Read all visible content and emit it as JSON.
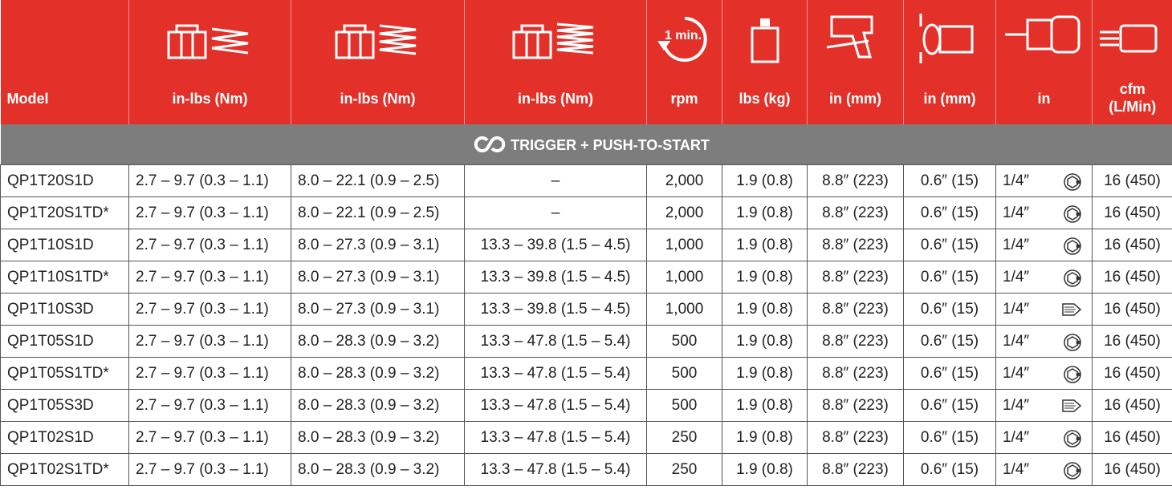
{
  "header": {
    "columns": [
      "Model",
      "in-lbs (Nm)",
      "in-lbs (Nm)",
      "in-lbs (Nm)",
      "rpm",
      "lbs (kg)",
      "in (mm)",
      "in (mm)",
      "in",
      "cfm (L/Min)"
    ],
    "rpm_icon_text": "1 min."
  },
  "section": "TRIGGER + PUSH-TO-START",
  "table": {
    "rows": [
      [
        "QP1T20S1D",
        "2.7 – 9.7 (0.3 – 1.1)",
        "8.0 – 22.1 (0.9 – 2.5)",
        "–",
        "2,000",
        "1.9 (0.8)",
        "8.8″ (223)",
        "0.6″ (15)",
        "1/4″",
        "16 (450)"
      ],
      [
        "QP1T20S1TD*",
        "2.7 – 9.7 (0.3 – 1.1)",
        "8.0 – 22.1 (0.9 – 2.5)",
        "–",
        "2,000",
        "1.9 (0.8)",
        "8.8″ (223)",
        "0.6″ (15)",
        "1/4″",
        "16 (450)"
      ],
      [
        "QP1T10S1D",
        "2.7 – 9.7 (0.3 – 1.1)",
        "8.0 – 27.3 (0.9 – 3.1)",
        "13.3 – 39.8 (1.5 – 4.5)",
        "1,000",
        "1.9 (0.8)",
        "8.8″ (223)",
        "0.6″ (15)",
        "1/4″",
        "16 (450)"
      ],
      [
        "QP1T10S1TD*",
        "2.7 – 9.7 (0.3 – 1.1)",
        "8.0 – 27.3 (0.9 – 3.1)",
        "13.3 – 39.8 (1.5 – 4.5)",
        "1,000",
        "1.9 (0.8)",
        "8.8″ (223)",
        "0.6″ (15)",
        "1/4″",
        "16 (450)"
      ],
      [
        "QP1T10S3D",
        "2.7 – 9.7 (0.3 – 1.1)",
        "8.0 – 27.3 (0.9 – 3.1)",
        "13.3 – 39.8 (1.5 – 4.5)",
        "1,000",
        "1.9 (0.8)",
        "8.8″ (223)",
        "0.6″ (15)",
        "1/4″",
        "16 (450)"
      ],
      [
        "QP1T05S1D",
        "2.7 – 9.7 (0.3 – 1.1)",
        "8.0 – 28.3 (0.9 – 3.2)",
        "13.3 – 47.8 (1.5 – 5.4)",
        "500",
        "1.9 (0.8)",
        "8.8″ (223)",
        "0.6″ (15)",
        "1/4″",
        "16 (450)"
      ],
      [
        "QP1T05S1TD*",
        "2.7 – 9.7 (0.3 – 1.1)",
        "8.0 – 28.3 (0.9 – 3.2)",
        "13.3 – 47.8 (1.5 – 5.4)",
        "500",
        "1.9 (0.8)",
        "8.8″ (223)",
        "0.6″ (15)",
        "1/4″",
        "16 (450)"
      ],
      [
        "QP1T05S3D",
        "2.7 – 9.7 (0.3 – 1.1)",
        "8.0 – 28.3 (0.9 – 3.2)",
        "13.3 – 47.8 (1.5 – 5.4)",
        "500",
        "1.9 (0.8)",
        "8.8″ (223)",
        "0.6″ (15)",
        "1/4″",
        "16 (450)"
      ],
      [
        "QP1T02S1D",
        "2.7 – 9.7 (0.3 – 1.1)",
        "8.0 – 28.3 (0.9 – 3.2)",
        "13.3 – 47.8 (1.5 – 5.4)",
        "250",
        "1.9 (0.8)",
        "8.8″ (223)",
        "0.6″ (15)",
        "1/4″",
        "16 (450)"
      ],
      [
        "QP1T02S1TD*",
        "2.7 – 9.7 (0.3 – 1.1)",
        "8.0 – 28.3 (0.9 – 3.2)",
        "13.3 – 47.8 (1.5 – 5.4)",
        "250",
        "1.9 (0.8)",
        "8.8″ (223)",
        "0.6″ (15)",
        "1/4″",
        "16 (450)"
      ]
    ]
  }
}
